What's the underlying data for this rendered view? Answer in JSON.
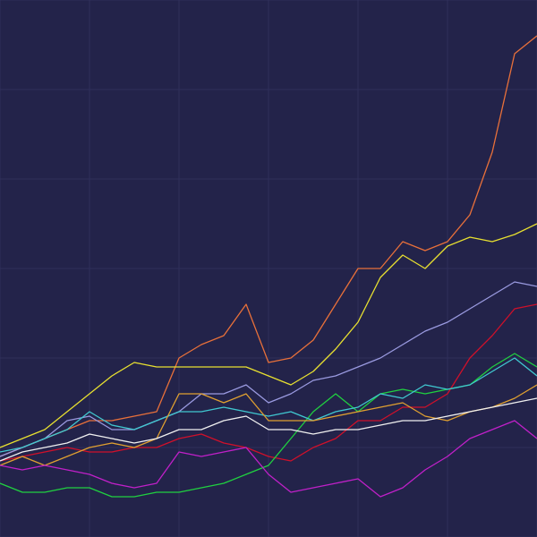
{
  "chart_data": {
    "type": "line",
    "x": [
      0,
      1,
      2,
      3,
      4,
      5,
      6,
      7,
      8,
      9,
      10,
      11,
      12,
      13,
      14,
      15,
      16,
      17,
      18,
      19,
      20,
      21,
      22,
      23,
      24
    ],
    "xlim": [
      0,
      24
    ],
    "ylim": [
      0,
      600
    ],
    "xticks": [
      0,
      4,
      8,
      12,
      16,
      20,
      24
    ],
    "yticks": [
      0,
      100,
      200,
      300,
      400,
      500,
      600
    ],
    "grid": true,
    "background": "#23234a",
    "grid_color": "#2f2f5a",
    "series": [
      {
        "color": "#e8703a",
        "values": [
          90,
          100,
          110,
          120,
          130,
          130,
          135,
          140,
          200,
          215,
          225,
          260,
          195,
          200,
          220,
          260,
          300,
          300,
          330,
          320,
          330,
          360,
          430,
          540,
          560
        ]
      },
      {
        "color": "#e8e030",
        "values": [
          100,
          110,
          120,
          140,
          160,
          180,
          195,
          190,
          190,
          190,
          190,
          190,
          180,
          170,
          185,
          210,
          240,
          290,
          315,
          300,
          325,
          335,
          330,
          338,
          350
        ]
      },
      {
        "color": "#9a9ae0",
        "values": [
          90,
          100,
          110,
          130,
          135,
          120,
          120,
          130,
          140,
          160,
          160,
          170,
          150,
          160,
          175,
          180,
          190,
          200,
          215,
          230,
          240,
          255,
          270,
          285,
          280
        ]
      },
      {
        "color": "#d0102a",
        "values": [
          85,
          90,
          95,
          100,
          95,
          95,
          100,
          100,
          110,
          115,
          105,
          100,
          90,
          85,
          100,
          110,
          130,
          130,
          145,
          145,
          160,
          200,
          225,
          255,
          260
        ]
      },
      {
        "color": "#20d040",
        "values": [
          60,
          50,
          50,
          55,
          55,
          45,
          45,
          50,
          50,
          55,
          60,
          70,
          80,
          110,
          140,
          160,
          140,
          160,
          165,
          160,
          165,
          170,
          190,
          205,
          190
        ]
      },
      {
        "color": "#40c8d0",
        "values": [
          95,
          100,
          110,
          120,
          140,
          125,
          120,
          130,
          140,
          140,
          145,
          140,
          135,
          140,
          130,
          140,
          145,
          160,
          155,
          170,
          165,
          170,
          185,
          200,
          180
        ]
      },
      {
        "color": "#e0a030",
        "values": [
          80,
          90,
          80,
          90,
          100,
          105,
          100,
          110,
          160,
          160,
          150,
          160,
          130,
          130,
          130,
          135,
          140,
          145,
          150,
          135,
          130,
          140,
          145,
          155,
          170
        ]
      },
      {
        "color": "#f0f0f0",
        "values": [
          85,
          95,
          100,
          105,
          115,
          110,
          105,
          110,
          120,
          120,
          130,
          135,
          120,
          120,
          115,
          120,
          120,
          125,
          130,
          130,
          135,
          140,
          145,
          150,
          155
        ]
      },
      {
        "color": "#c020c8",
        "values": [
          80,
          75,
          80,
          75,
          70,
          60,
          55,
          60,
          95,
          90,
          95,
          100,
          70,
          50,
          55,
          60,
          65,
          45,
          55,
          75,
          90,
          110,
          120,
          130,
          110
        ]
      }
    ]
  }
}
